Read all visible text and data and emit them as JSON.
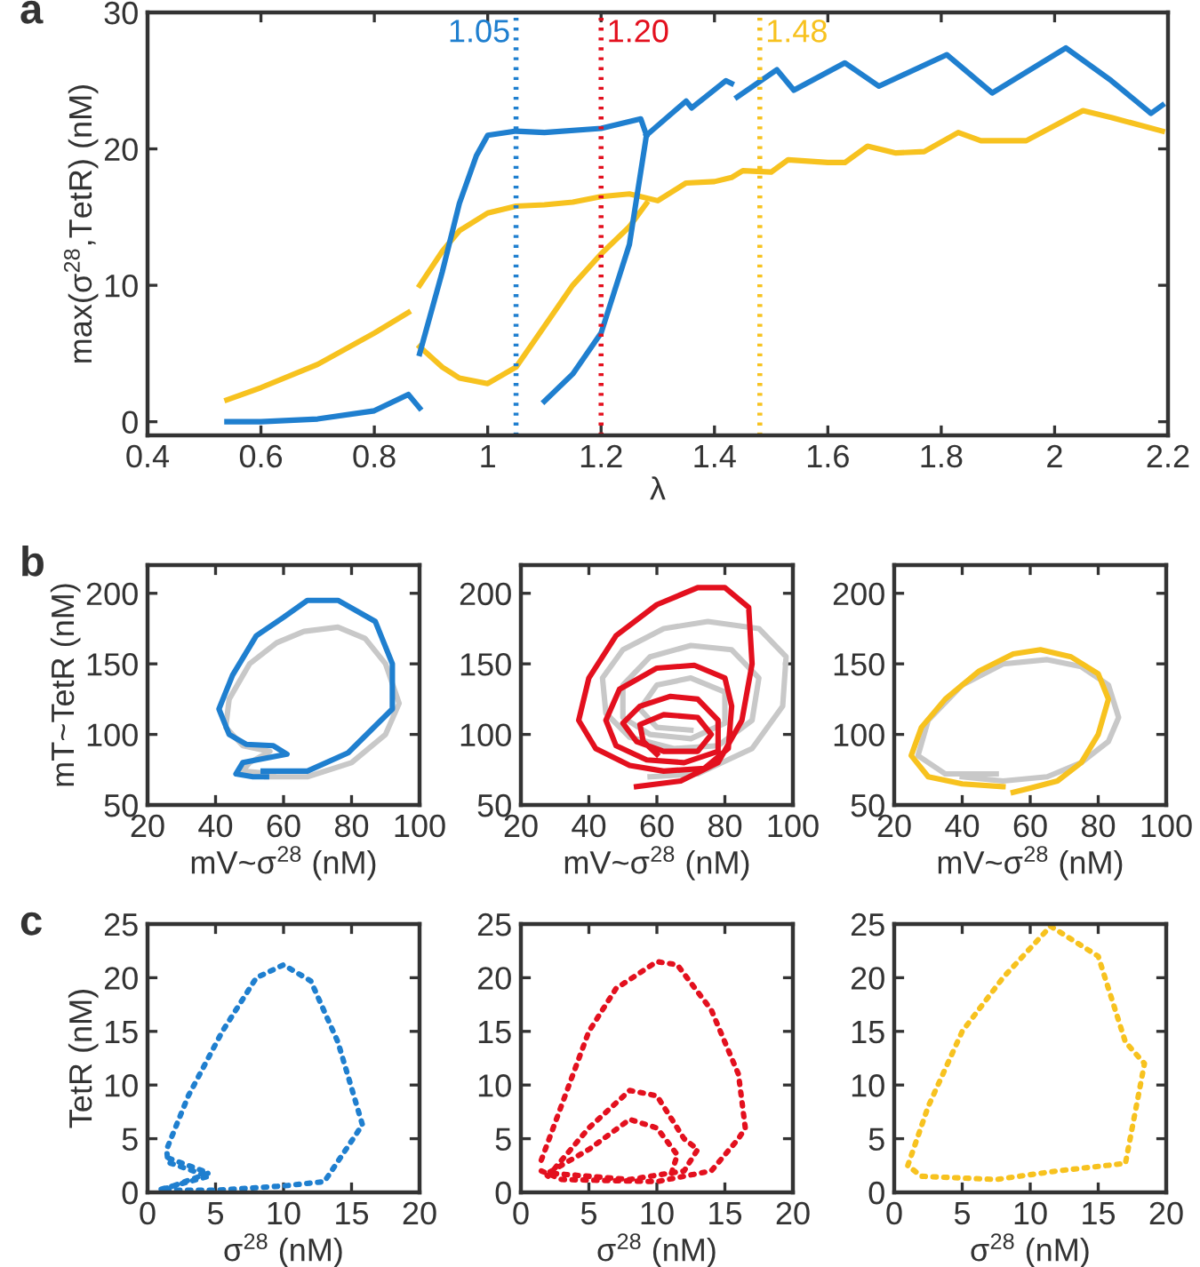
{
  "chart_data": [
    {
      "type": "line",
      "xlabel": "λ",
      "ylabel": "max(σ$^{28}$,TetR) (nM)",
      "annotations": [
        "a"
      ],
      "xlim": [
        0.4,
        2.2
      ],
      "ylim": [
        -1,
        30
      ],
      "xticks": [
        0.4,
        0.6,
        0.8,
        1,
        1.2,
        1.4,
        1.6,
        1.8,
        2,
        2.2
      ],
      "yticks": [
        0,
        10,
        20,
        30
      ],
      "grid": false,
      "legend": false,
      "line_style": "solid",
      "ref_lines": [
        {
          "axis": "x",
          "value": 1.05,
          "label": "1.05",
          "color": "#1f7fcf",
          "line_style": "dotted"
        },
        {
          "axis": "x",
          "value": 1.2,
          "label": "1.20",
          "color": "#e3101e",
          "line_style": "dotted"
        },
        {
          "axis": "x",
          "value": 1.48,
          "label": "1.48",
          "color": "#f7c21f",
          "line_style": "dotted"
        }
      ],
      "series": [
        {
          "color": "#f7c21f",
          "x": [
            0.54,
            0.6,
            0.7,
            0.8,
            0.86
          ],
          "values": [
            1.6,
            2.5,
            4.2,
            6.5,
            8
          ]
        },
        {
          "color": "#f7c21f",
          "x": [
            0.88,
            0.92,
            0.95,
            1.0,
            1.05,
            1.1,
            1.15,
            1.2,
            1.25,
            1.3,
            1.35,
            1.4,
            1.43,
            1.45,
            1.5,
            1.53,
            1.6,
            1.63,
            1.67,
            1.72,
            1.77,
            1.83,
            1.87,
            1.95,
            2.05,
            2.1,
            2.19
          ],
          "values": [
            10,
            12.5,
            14,
            15.3,
            15.8,
            15.9,
            16.1,
            16.5,
            16.7,
            16.2,
            17.5,
            17.6,
            17.9,
            18.4,
            18.3,
            19.2,
            19,
            19,
            20.2,
            19.7,
            19.8,
            21.2,
            20.6,
            20.6,
            22.8,
            22.3,
            21.3
          ]
        },
        {
          "color": "#f7c21f",
          "x": [
            0.88,
            0.92,
            0.95,
            1.0,
            1.05,
            1.1,
            1.15,
            1.2,
            1.25,
            1.28
          ],
          "values": [
            5.5,
            4,
            3.2,
            2.8,
            4,
            7,
            10,
            12.3,
            14.3,
            16
          ]
        },
        {
          "color": "#1f7fcf",
          "x": [
            0.54,
            0.6,
            0.7,
            0.8,
            0.86,
            0.87,
            0.88
          ],
          "values": [
            0,
            0,
            0.2,
            0.8,
            2,
            1.5,
            1
          ]
        },
        {
          "color": "#1f7fcf",
          "x": [
            0.88,
            0.92,
            0.95,
            0.98,
            1.0,
            1.05,
            1.1,
            1.2,
            1.27,
            1.28
          ],
          "values": [
            5,
            11,
            16,
            19.5,
            21,
            21.3,
            21.2,
            21.5,
            22.2,
            21
          ]
        },
        {
          "color": "#1f7fcf",
          "x": [
            1.1,
            1.15,
            1.2,
            1.25,
            1.28
          ],
          "values": [
            1.5,
            3.5,
            6.5,
            13,
            21
          ]
        },
        {
          "color": "#1f7fcf",
          "x": [
            1.28,
            1.35,
            1.36,
            1.42,
            1.43
          ],
          "values": [
            21,
            23.5,
            23,
            25,
            24.8
          ]
        },
        {
          "color": "#1f7fcf",
          "x": [
            1.44,
            1.51,
            1.54,
            1.63,
            1.69,
            1.81,
            1.89,
            2.02,
            2.1,
            2.17,
            2.19
          ],
          "values": [
            23.8,
            25.8,
            24.3,
            26.3,
            24.6,
            26.9,
            24.1,
            27.4,
            25,
            22.6,
            23.2
          ]
        }
      ]
    },
    {
      "type": "line",
      "xlabel": "mV~σ$^{28}$ (nM)",
      "ylabel": "mT~TetR (nM)",
      "annotations": [
        "b"
      ],
      "xlim": [
        20,
        100
      ],
      "ylim": [
        50,
        220
      ],
      "xticks": [
        20,
        40,
        60,
        80,
        100
      ],
      "yticks": [
        50,
        100,
        150,
        200
      ],
      "grid": false,
      "legend": false,
      "line_style": "solid",
      "series": [
        {
          "color": "#c8c8c8",
          "x": [
            55,
            67,
            80,
            90,
            94,
            90,
            84,
            76,
            66,
            58,
            50,
            44,
            43,
            48,
            56,
            50,
            48,
            57
          ],
          "values": [
            70,
            70,
            80,
            100,
            122,
            150,
            168,
            176,
            173,
            165,
            150,
            125,
            105,
            92,
            88,
            80,
            74,
            72
          ]
        },
        {
          "color": "#1f7fcf",
          "x": [
            54,
            67,
            79,
            92,
            92,
            87,
            76,
            67,
            60,
            52,
            45,
            41,
            44,
            49,
            57,
            61,
            48,
            46,
            51,
            55
          ],
          "values": [
            74,
            74,
            87,
            118,
            150,
            180,
            195,
            195,
            183,
            170,
            142,
            118,
            100,
            93,
            92,
            86,
            80,
            72,
            70,
            70
          ]
        }
      ]
    },
    {
      "type": "line",
      "xlabel": "mV~σ$^{28}$ (nM)",
      "xlim": [
        20,
        100
      ],
      "ylim": [
        50,
        220
      ],
      "xticks": [
        20,
        40,
        60,
        80,
        100
      ],
      "yticks": [
        50,
        100,
        150,
        200
      ],
      "grid": false,
      "legend": false,
      "line_style": "solid",
      "series": [
        {
          "color": "#c8c8c8",
          "x": [
            58,
            72,
            88,
            97,
            98,
            90,
            75,
            62,
            50,
            44,
            45,
            52,
            65,
            78,
            88,
            90,
            82,
            70,
            58,
            50,
            50,
            58,
            70,
            80,
            80,
            70,
            60,
            55,
            60,
            70
          ],
          "values": [
            70,
            72,
            90,
            120,
            155,
            175,
            180,
            175,
            160,
            140,
            115,
            98,
            90,
            92,
            110,
            140,
            160,
            163,
            155,
            135,
            112,
            100,
            97,
            108,
            130,
            140,
            135,
            118,
            105,
            103
          ]
        },
        {
          "color": "#e3101e",
          "x": [
            54,
            67,
            78,
            85,
            88,
            87,
            80,
            72,
            60,
            48,
            40,
            37,
            42,
            52,
            62,
            74,
            81,
            82,
            80,
            71,
            60,
            49,
            45,
            48,
            57,
            68,
            78,
            78,
            72,
            64,
            55,
            50,
            54,
            62,
            72,
            76,
            72,
            62,
            55,
            56,
            60
          ],
          "values": [
            63,
            67,
            80,
            110,
            150,
            190,
            204,
            204,
            192,
            170,
            140,
            110,
            90,
            78,
            74,
            76,
            90,
            120,
            140,
            149,
            147,
            132,
            110,
            92,
            82,
            80,
            88,
            110,
            125,
            127,
            120,
            108,
            95,
            88,
            88,
            100,
            112,
            114,
            107,
            95,
            86
          ]
        }
      ]
    },
    {
      "type": "line",
      "xlabel": "mV~σ$^{28}$ (nM)",
      "xlim": [
        20,
        100
      ],
      "ylim": [
        50,
        220
      ],
      "xticks": [
        20,
        40,
        60,
        80,
        100
      ],
      "yticks": [
        50,
        100,
        150,
        200
      ],
      "grid": false,
      "legend": false,
      "line_style": "solid",
      "series": [
        {
          "color": "#c8c8c8",
          "x": [
            50,
            35,
            27,
            30,
            40,
            52,
            65,
            75,
            83,
            86,
            83,
            75,
            65,
            52,
            40
          ],
          "values": [
            72,
            72,
            85,
            110,
            135,
            150,
            153,
            148,
            135,
            112,
            95,
            80,
            70,
            67,
            70
          ]
        },
        {
          "color": "#f7c21f",
          "x": [
            52,
            40,
            30,
            25,
            28,
            35,
            45,
            55,
            63,
            72,
            80,
            83,
            80,
            75,
            68,
            60,
            55
          ],
          "values": [
            63,
            65,
            70,
            85,
            105,
            125,
            145,
            157,
            160,
            155,
            143,
            125,
            100,
            80,
            67,
            62,
            59
          ]
        }
      ]
    },
    {
      "type": "line",
      "xlabel": "σ$^{28}$ (nM)",
      "ylabel": "TetR (nM)",
      "annotations": [
        "c"
      ],
      "xlim": [
        0,
        20
      ],
      "ylim": [
        0,
        25
      ],
      "xticks": [
        0,
        5,
        10,
        15,
        20
      ],
      "yticks": [
        0,
        5,
        10,
        15,
        20,
        25
      ],
      "grid": false,
      "legend": false,
      "line_style": "dotted",
      "series": [
        {
          "color": "#1f7fcf",
          "x": [
            1,
            4.5,
            1.5,
            1.4,
            3,
            5.5,
            8,
            10,
            12,
            14,
            15.8,
            13,
            10,
            5,
            1,
            4.5,
            1.5
          ],
          "values": [
            0.3,
            1.5,
            2.8,
            4,
            9,
            15,
            20,
            21.2,
            19.7,
            14,
            6.3,
            1,
            0.6,
            0.2,
            0.2,
            1.8,
            3.2
          ]
        }
      ]
    },
    {
      "type": "line",
      "xlabel": "σ$^{28}$ (nM)",
      "xlim": [
        0,
        20
      ],
      "ylim": [
        0,
        25
      ],
      "xticks": [
        0,
        5,
        10,
        15,
        20
      ],
      "yticks": [
        0,
        5,
        10,
        15,
        20,
        25
      ],
      "grid": false,
      "legend": false,
      "line_style": "dotted",
      "series": [
        {
          "color": "#e3101e",
          "x": [
            1.5,
            5,
            7,
            10,
            11.5,
            14,
            16,
            16.5,
            16,
            14,
            10,
            3,
            1.5,
            2,
            5,
            8,
            10,
            12,
            13,
            12,
            8,
            2,
            5,
            8,
            10,
            11.5,
            11
          ],
          "values": [
            3,
            15,
            19,
            21.5,
            21.2,
            17,
            11,
            6,
            5,
            2,
            1,
            1.2,
            2,
            1.5,
            6,
            9.5,
            9,
            5,
            4,
            2,
            1.2,
            1.8,
            4,
            6.8,
            6,
            3.5,
            1.5
          ]
        }
      ]
    },
    {
      "type": "line",
      "xlabel": "σ$^{28}$ (nM)",
      "xlim": [
        0,
        20
      ],
      "ylim": [
        0,
        25
      ],
      "xticks": [
        0,
        5,
        10,
        15,
        20
      ],
      "yticks": [
        0,
        5,
        10,
        15,
        20,
        25
      ],
      "grid": false,
      "legend": false,
      "line_style": "dotted",
      "series": [
        {
          "color": "#f7c21f",
          "x": [
            1,
            2.5,
            5,
            8,
            11.5,
            15,
            17,
            18.4,
            17,
            12,
            7.5,
            2,
            1.3
          ],
          "values": [
            2.5,
            8,
            15,
            20,
            24.8,
            22,
            14,
            12,
            2.7,
            2,
            1.2,
            1.5,
            2.2
          ]
        }
      ]
    }
  ]
}
